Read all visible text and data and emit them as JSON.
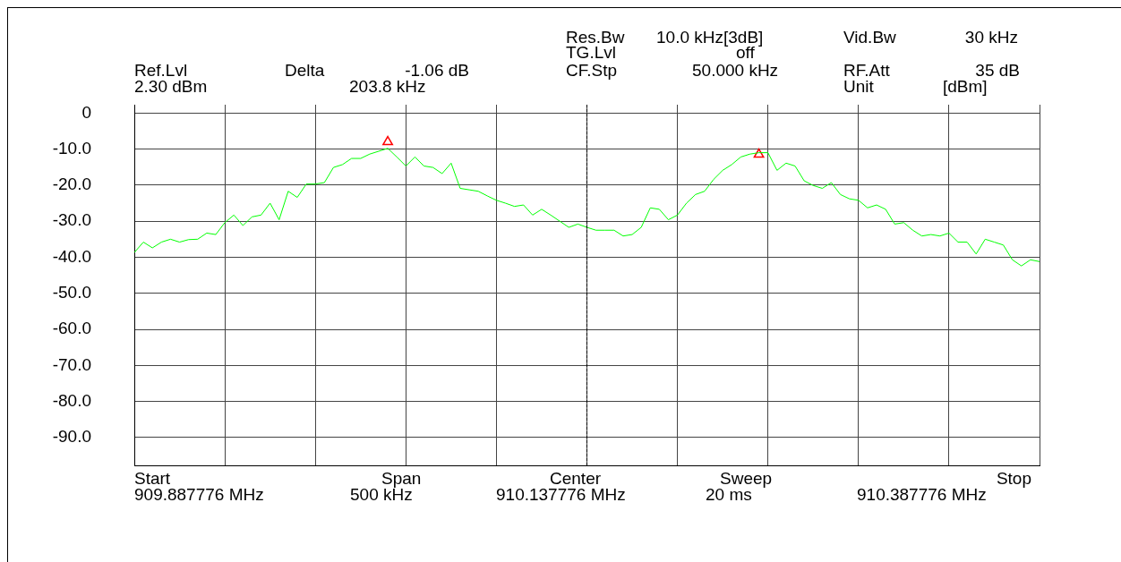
{
  "chart_data": {
    "type": "line",
    "annotations": [
      "Ref.Lvl",
      "2.30 dBm",
      "Delta",
      "-1.06 dB",
      "203.8 kHz",
      "Res.Bw",
      "10.0 kHz[3dB]",
      "TG.Lvl",
      "off",
      "CF.Stp",
      "50.000 kHz",
      "Vid.Bw",
      "30 kHz",
      "RF.Att",
      "35 dB",
      "Unit",
      "[dBm]",
      "Start",
      "909.887776 MHz",
      "Span",
      "500 kHz",
      "Center",
      "910.137776 MHz",
      "Sweep",
      "20 ms",
      "Stop",
      "910.387776 MHz"
    ],
    "categories": [
      null,
      null,
      null,
      null,
      null,
      null,
      null,
      null,
      null,
      null,
      null,
      null,
      null,
      null,
      null,
      null,
      null,
      null,
      null,
      null,
      null,
      null,
      null,
      null,
      null,
      null,
      null,
      null,
      null,
      null,
      null,
      null,
      null,
      null,
      null,
      null,
      null,
      null,
      null,
      null,
      null,
      null,
      null,
      null,
      null,
      null,
      null,
      null,
      null,
      null,
      null,
      null,
      null,
      null,
      null,
      null,
      null,
      null,
      null,
      null,
      null,
      null,
      null,
      null,
      null,
      null,
      null,
      null,
      null,
      null,
      null,
      null,
      null,
      null,
      null,
      null,
      null,
      null,
      null,
      null,
      null,
      null,
      null,
      null,
      null,
      null,
      null,
      null,
      null,
      null,
      null,
      null,
      null,
      null,
      null,
      null,
      null,
      null,
      null,
      null,
      null
    ],
    "ylim": [
      -97.7,
      2.3
    ],
    "yticks": [
      {
        "value": 0,
        "label": "0"
      },
      {
        "value": -10,
        "label": "-10.0"
      },
      {
        "value": -20,
        "label": "-20.0"
      },
      {
        "value": -30,
        "label": "-30.0"
      },
      {
        "value": -40,
        "label": "-40.0"
      },
      {
        "value": -50,
        "label": "-50.0"
      },
      {
        "value": -60,
        "label": "-60.0"
      },
      {
        "value": -70,
        "label": "-70.0"
      },
      {
        "value": -80,
        "label": "-80.0"
      },
      {
        "value": -90,
        "label": "-90.0"
      }
    ],
    "grid": true,
    "legend": false,
    "marker": "none",
    "line_style": "solid",
    "tick_labels": "y",
    "series": [
      {
        "color": "#00ff00",
        "values": [
          -38.7,
          -35.8,
          -37.4,
          -35.8,
          -35,
          -35.8,
          -35.1,
          -35,
          -33.3,
          -33.7,
          -30.4,
          -28.3,
          -31.2,
          -28.8,
          -28.3,
          -25,
          -29.6,
          -21.7,
          -23.4,
          -19.7,
          -19.7,
          -19.3,
          -15.1,
          -14.3,
          -12.6,
          -12.6,
          -11.4,
          -10.6,
          -9.8,
          -12.2,
          -14.7,
          -12.2,
          -14.7,
          -15.1,
          -16.8,
          -13.9,
          -20.9,
          -21.3,
          -21.7,
          -23,
          -24.2,
          -25,
          -25.9,
          -25.5,
          -28.3,
          -26.7,
          -28.3,
          -30,
          -31.7,
          -30.8,
          -31.7,
          -32.5,
          -32.5,
          -32.5,
          -34.1,
          -33.7,
          -31.7,
          -26.3,
          -26.7,
          -29.6,
          -28.3,
          -25,
          -22.6,
          -21.7,
          -18.4,
          -15.9,
          -14.3,
          -12.2,
          -11.4,
          -11,
          -11,
          -15.9,
          -13.9,
          -14.7,
          -18.8,
          -20.1,
          -20.9,
          -19.3,
          -22.6,
          -23.8,
          -24.2,
          -26.3,
          -25.5,
          -26.7,
          -30.8,
          -30.4,
          -32.5,
          -34.1,
          -33.7,
          -34.1,
          -33.3,
          -35.8,
          -35.8,
          -39.1,
          -35,
          -35.8,
          -36.6,
          -40.7,
          -42.4,
          -40.7,
          -41.2
        ]
      },
      {
        "type": "scatter",
        "marker": "triangle",
        "color": "#ff0000",
        "values": [
          null,
          null,
          null,
          null,
          null,
          null,
          null,
          null,
          null,
          null,
          null,
          null,
          null,
          null,
          null,
          null,
          null,
          null,
          null,
          null,
          null,
          null,
          null,
          null,
          null,
          null,
          null,
          null,
          -8,
          null,
          null,
          null,
          null,
          null,
          null,
          null,
          null,
          null,
          null,
          null,
          null,
          null,
          null,
          null,
          null,
          null,
          null,
          null,
          null,
          null,
          null,
          null,
          null,
          null,
          null,
          null,
          null,
          null,
          null,
          null,
          null,
          null,
          null,
          null,
          null,
          null,
          null,
          null,
          null,
          null,
          null,
          null,
          null,
          null,
          null,
          null,
          null,
          null,
          null,
          null,
          null,
          null,
          null,
          null,
          null,
          null,
          null,
          null,
          null,
          null,
          null,
          null,
          null,
          null,
          null,
          null,
          null,
          null,
          null,
          null,
          null
        ]
      },
      {
        "type": "scatter",
        "marker": "triangle",
        "color": "#ff0000",
        "values": [
          null,
          null,
          null,
          null,
          null,
          null,
          null,
          null,
          null,
          null,
          null,
          null,
          null,
          null,
          null,
          null,
          null,
          null,
          null,
          null,
          null,
          null,
          null,
          null,
          null,
          null,
          null,
          null,
          null,
          null,
          null,
          null,
          null,
          null,
          null,
          null,
          null,
          null,
          null,
          null,
          null,
          null,
          null,
          null,
          null,
          null,
          null,
          null,
          null,
          null,
          null,
          null,
          null,
          null,
          null,
          null,
          null,
          null,
          null,
          null,
          null,
          null,
          null,
          null,
          null,
          null,
          null,
          null,
          null,
          -11.5,
          null,
          null,
          null,
          null,
          null,
          null,
          null,
          null,
          null,
          null,
          null,
          null,
          null,
          null,
          null,
          null,
          null,
          null,
          null,
          null,
          null,
          null,
          null,
          null,
          null,
          null,
          null,
          null,
          null,
          null,
          null
        ]
      }
    ]
  }
}
